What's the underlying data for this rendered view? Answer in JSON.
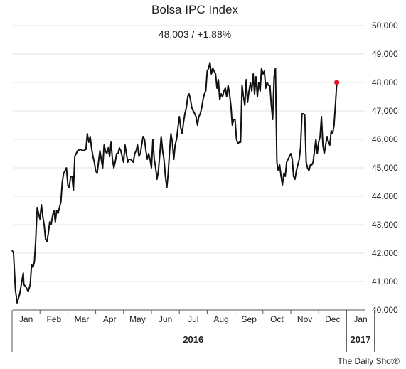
{
  "header": {
    "title": "Bolsa IPC Index",
    "subtitle": "48,003  /  +1.88%"
  },
  "credit": "The Daily Shot®",
  "chart_data": {
    "type": "line",
    "title": "Bolsa IPC Index",
    "subtitle": "48,003  /  +1.88%",
    "xlabel": "",
    "ylabel": "",
    "y_axis_position": "right",
    "ylim": [
      40000,
      50000
    ],
    "y_ticks": [
      40000,
      41000,
      42000,
      43000,
      44000,
      45000,
      46000,
      47000,
      48000,
      49000,
      50000
    ],
    "y_tick_labels": [
      "40,000",
      "41,000",
      "42,000",
      "43,000",
      "44,000",
      "45,000",
      "46,000",
      "47,000",
      "48,000",
      "49,000",
      "50,000"
    ],
    "month_labels": [
      "Jan",
      "Feb",
      "Mar",
      "Apr",
      "May",
      "Jun",
      "Jul",
      "Aug",
      "Sep",
      "Oct",
      "Nov",
      "Dec",
      "Jan"
    ],
    "year_labels": [
      {
        "label": "2016",
        "month_index": 6.5
      },
      {
        "label": "2017",
        "month_index": 12.5
      }
    ],
    "grid": true,
    "line_color": "#111111",
    "end_marker_color": "#e8161b",
    "series": [
      {
        "name": "",
        "points": [
          [
            0.0,
            42100
          ],
          [
            0.05,
            42000
          ],
          [
            0.12,
            40700
          ],
          [
            0.18,
            40250
          ],
          [
            0.27,
            40550
          ],
          [
            0.35,
            41000
          ],
          [
            0.4,
            41300
          ],
          [
            0.42,
            40900
          ],
          [
            0.5,
            40800
          ],
          [
            0.58,
            40650
          ],
          [
            0.65,
            40900
          ],
          [
            0.7,
            41600
          ],
          [
            0.75,
            41500
          ],
          [
            0.8,
            41700
          ],
          [
            0.85,
            42500
          ],
          [
            0.9,
            43600
          ],
          [
            0.95,
            43400
          ],
          [
            1.0,
            43200
          ],
          [
            1.05,
            43700
          ],
          [
            1.1,
            43300
          ],
          [
            1.15,
            43000
          ],
          [
            1.2,
            42500
          ],
          [
            1.25,
            42400
          ],
          [
            1.3,
            42700
          ],
          [
            1.35,
            43100
          ],
          [
            1.4,
            43000
          ],
          [
            1.45,
            43300
          ],
          [
            1.5,
            43500
          ],
          [
            1.55,
            43100
          ],
          [
            1.6,
            43500
          ],
          [
            1.65,
            43400
          ],
          [
            1.7,
            43600
          ],
          [
            1.75,
            43800
          ],
          [
            1.8,
            44500
          ],
          [
            1.85,
            44800
          ],
          [
            1.9,
            44900
          ],
          [
            1.95,
            45000
          ],
          [
            2.0,
            44400
          ],
          [
            2.05,
            44300
          ],
          [
            2.1,
            44700
          ],
          [
            2.15,
            44700
          ],
          [
            2.2,
            44200
          ],
          [
            2.25,
            45400
          ],
          [
            2.35,
            45600
          ],
          [
            2.45,
            45650
          ],
          [
            2.55,
            45600
          ],
          [
            2.65,
            45650
          ],
          [
            2.7,
            46200
          ],
          [
            2.75,
            45900
          ],
          [
            2.8,
            46100
          ],
          [
            2.85,
            45700
          ],
          [
            2.9,
            45400
          ],
          [
            2.95,
            45200
          ],
          [
            3.0,
            44900
          ],
          [
            3.05,
            44800
          ],
          [
            3.1,
            45200
          ],
          [
            3.15,
            45600
          ],
          [
            3.2,
            45300
          ],
          [
            3.25,
            45000
          ],
          [
            3.3,
            45800
          ],
          [
            3.35,
            45600
          ],
          [
            3.4,
            45500
          ],
          [
            3.45,
            45700
          ],
          [
            3.5,
            45400
          ],
          [
            3.55,
            45900
          ],
          [
            3.6,
            45300
          ],
          [
            3.65,
            45000
          ],
          [
            3.7,
            45200
          ],
          [
            3.75,
            45500
          ],
          [
            3.8,
            45500
          ],
          [
            3.85,
            45700
          ],
          [
            3.9,
            45600
          ],
          [
            3.95,
            45400
          ],
          [
            4.0,
            45200
          ],
          [
            4.05,
            45800
          ],
          [
            4.1,
            45500
          ],
          [
            4.15,
            45200
          ],
          [
            4.2,
            45300
          ],
          [
            4.25,
            45300
          ],
          [
            4.35,
            45200
          ],
          [
            4.4,
            45500
          ],
          [
            4.45,
            45600
          ],
          [
            4.5,
            45800
          ],
          [
            4.55,
            45400
          ],
          [
            4.6,
            45500
          ],
          [
            4.65,
            45800
          ],
          [
            4.7,
            46100
          ],
          [
            4.75,
            46000
          ],
          [
            4.8,
            45600
          ],
          [
            4.85,
            45300
          ],
          [
            4.9,
            45500
          ],
          [
            4.95,
            45300
          ],
          [
            5.0,
            45000
          ],
          [
            5.05,
            46000
          ],
          [
            5.1,
            45300
          ],
          [
            5.15,
            45000
          ],
          [
            5.2,
            44600
          ],
          [
            5.25,
            44900
          ],
          [
            5.3,
            45500
          ],
          [
            5.35,
            46100
          ],
          [
            5.4,
            45600
          ],
          [
            5.45,
            45300
          ],
          [
            5.5,
            44700
          ],
          [
            5.55,
            44300
          ],
          [
            5.6,
            44800
          ],
          [
            5.65,
            45600
          ],
          [
            5.7,
            46200
          ],
          [
            5.75,
            45900
          ],
          [
            5.8,
            45300
          ],
          [
            5.85,
            45800
          ],
          [
            5.9,
            46000
          ],
          [
            5.95,
            46400
          ],
          [
            6.0,
            46800
          ],
          [
            6.05,
            46400
          ],
          [
            6.1,
            46200
          ],
          [
            6.15,
            46600
          ],
          [
            6.2,
            46900
          ],
          [
            6.25,
            47100
          ],
          [
            6.3,
            47500
          ],
          [
            6.35,
            47600
          ],
          [
            6.4,
            47400
          ],
          [
            6.45,
            47100
          ],
          [
            6.5,
            47000
          ],
          [
            6.55,
            46900
          ],
          [
            6.6,
            46800
          ],
          [
            6.65,
            46500
          ],
          [
            6.7,
            46800
          ],
          [
            6.75,
            46900
          ],
          [
            6.8,
            47100
          ],
          [
            6.85,
            47400
          ],
          [
            6.9,
            47600
          ],
          [
            6.95,
            47700
          ],
          [
            7.0,
            48400
          ],
          [
            7.05,
            48500
          ],
          [
            7.1,
            48700
          ],
          [
            7.15,
            48300
          ],
          [
            7.2,
            48500
          ],
          [
            7.25,
            48400
          ],
          [
            7.3,
            48300
          ],
          [
            7.35,
            47800
          ],
          [
            7.4,
            48100
          ],
          [
            7.45,
            47400
          ],
          [
            7.5,
            47600
          ],
          [
            7.55,
            47500
          ],
          [
            7.6,
            47700
          ],
          [
            7.65,
            47800
          ],
          [
            7.7,
            47500
          ],
          [
            7.75,
            47900
          ],
          [
            7.8,
            47600
          ],
          [
            7.85,
            47200
          ],
          [
            7.9,
            46500
          ],
          [
            7.95,
            46700
          ],
          [
            8.0,
            46700
          ],
          [
            8.05,
            46000
          ],
          [
            8.1,
            45850
          ],
          [
            8.15,
            45900
          ],
          [
            8.2,
            45900
          ],
          [
            8.25,
            47900
          ],
          [
            8.3,
            47500
          ],
          [
            8.35,
            47200
          ],
          [
            8.4,
            48100
          ],
          [
            8.45,
            47300
          ],
          [
            8.5,
            47700
          ],
          [
            8.55,
            48000
          ],
          [
            8.6,
            47700
          ],
          [
            8.65,
            48300
          ],
          [
            8.7,
            47600
          ],
          [
            8.75,
            48200
          ],
          [
            8.8,
            47500
          ],
          [
            8.85,
            48000
          ],
          [
            8.9,
            47700
          ],
          [
            8.95,
            48500
          ],
          [
            9.0,
            48300
          ],
          [
            9.05,
            48400
          ],
          [
            9.1,
            47800
          ],
          [
            9.15,
            48000
          ],
          [
            9.2,
            47900
          ],
          [
            9.25,
            47900
          ],
          [
            9.3,
            47200
          ],
          [
            9.35,
            46700
          ],
          [
            9.4,
            48200
          ],
          [
            9.45,
            48500
          ],
          [
            9.5,
            45200
          ],
          [
            9.55,
            44900
          ],
          [
            9.6,
            45100
          ],
          [
            9.65,
            44700
          ],
          [
            9.7,
            44400
          ],
          [
            9.75,
            44800
          ],
          [
            9.8,
            44700
          ],
          [
            9.85,
            45200
          ],
          [
            9.9,
            45300
          ],
          [
            9.95,
            45400
          ],
          [
            10.0,
            45500
          ],
          [
            10.05,
            45300
          ],
          [
            10.1,
            44700
          ],
          [
            10.15,
            44600
          ],
          [
            10.2,
            44900
          ],
          [
            10.25,
            45100
          ],
          [
            10.3,
            45300
          ],
          [
            10.35,
            45700
          ],
          [
            10.4,
            46900
          ],
          [
            10.45,
            46900
          ],
          [
            10.5,
            46850
          ],
          [
            10.55,
            45200
          ],
          [
            10.6,
            45000
          ],
          [
            10.65,
            44900
          ],
          [
            10.7,
            45100
          ],
          [
            10.75,
            45100
          ],
          [
            10.8,
            45200
          ],
          [
            10.85,
            45600
          ],
          [
            10.9,
            46000
          ],
          [
            10.95,
            45500
          ],
          [
            11.0,
            45900
          ],
          [
            11.05,
            46100
          ],
          [
            11.1,
            46800
          ],
          [
            11.15,
            45800
          ],
          [
            11.2,
            45500
          ],
          [
            11.25,
            45800
          ],
          [
            11.3,
            46100
          ],
          [
            11.35,
            45900
          ],
          [
            11.4,
            45800
          ],
          [
            11.45,
            46300
          ],
          [
            11.5,
            46200
          ],
          [
            11.55,
            46500
          ],
          [
            11.6,
            47200
          ],
          [
            11.65,
            48003
          ]
        ]
      }
    ],
    "last_point": {
      "x": 11.65,
      "y": 48003
    }
  }
}
